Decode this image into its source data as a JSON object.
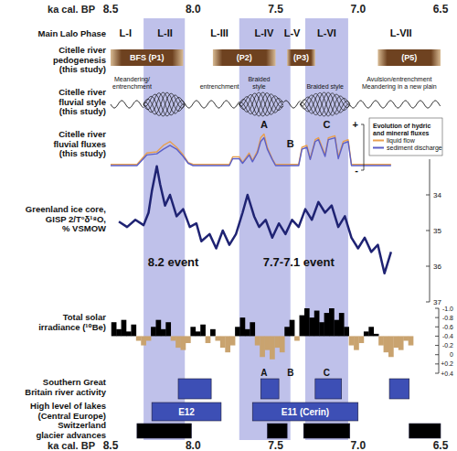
{
  "chart_data": {
    "type": "multi-panel timeline",
    "xlabel": "ka cal. BP",
    "xlim": [
      8.5,
      6.5
    ],
    "xticks": [
      8.5,
      {
        "value": 8,
        "label": "8.0"
      },
      7.5,
      {
        "value": 7,
        "label": "7.0"
      },
      6.5
    ],
    "bands": [
      {
        "start": 8.3,
        "end": 8.05
      },
      {
        "start": 7.72,
        "end": 7.41
      },
      {
        "start": 7.32,
        "end": 7.06
      }
    ],
    "rows": [
      {
        "type": "phases",
        "label": [
          "Main Lalo Phase"
        ],
        "items": [
          {
            "name": "L-I",
            "x": 8.41
          },
          {
            "name": "L-II",
            "x": 8.17
          },
          {
            "name": "L-III",
            "x": 7.84
          },
          {
            "name": "L-IV",
            "x": 7.57
          },
          {
            "name": "L-V",
            "x": 7.4
          },
          {
            "name": "L-VI",
            "x": 7.19
          },
          {
            "name": "L-VII",
            "x": 6.74
          }
        ]
      },
      {
        "type": "intervals",
        "label": [
          "Citelle river",
          "pedogenesis",
          "(this study)"
        ],
        "color": "#6e4220",
        "intervals": [
          {
            "name": "BFS (P1)",
            "start": 8.5,
            "end": 8.06
          },
          {
            "name": "(P2)",
            "start": 7.88,
            "end": 7.5
          },
          {
            "name": "(P3)",
            "start": 7.43,
            "end": 7.26
          },
          {
            "name": "(P5)",
            "start": 6.88,
            "end": 6.5
          }
        ]
      },
      {
        "type": "fluvial_style",
        "label": [
          "Citelle river",
          "fluvial style",
          "(this study)"
        ],
        "segments": [
          {
            "style": "meandering",
            "start": 8.5,
            "end": 8.3
          },
          {
            "style": "braided",
            "start": 8.3,
            "end": 8.05
          },
          {
            "style": "meandering",
            "start": 8.05,
            "end": 7.72
          },
          {
            "style": "braided",
            "start": 7.72,
            "end": 7.45
          },
          {
            "style": "meandering",
            "start": 7.45,
            "end": 7.35
          },
          {
            "style": "braided",
            "start": 7.35,
            "end": 7.05
          },
          {
            "style": "meandering",
            "start": 7.05,
            "end": 6.5
          }
        ],
        "annotations": [
          {
            "lines": [
              "Meandering/",
              "entrenchment"
            ],
            "x": 8.37
          },
          {
            "lines": [
              "entrenchment"
            ],
            "x": 7.84
          },
          {
            "lines": [
              "Braided",
              "style"
            ],
            "x": 7.6
          },
          {
            "lines": [
              "Braided style"
            ],
            "x": 7.2
          },
          {
            "lines": [
              "Avulsion/entrenchment",
              "Meandering in a new plain"
            ],
            "x": 6.75
          }
        ]
      },
      {
        "type": "line",
        "label": [
          "Citelle river",
          "fluvial fluxes",
          "(this study)"
        ],
        "x": [
          8.5,
          8.34,
          8.31,
          8.28,
          8.22,
          8.18,
          8.14,
          8.1,
          8.06,
          8.03,
          8.0,
          7.78,
          7.76,
          7.72,
          7.7,
          7.66,
          7.64,
          7.61,
          7.59,
          7.57,
          7.55,
          7.52,
          7.5,
          7.36,
          7.34,
          7.31,
          7.29,
          7.26,
          7.24,
          7.2,
          7.18,
          7.14,
          7.12,
          7.09,
          7.06,
          7.04,
          6.8
        ],
        "series": [
          {
            "name": "liquid flow",
            "color": "#e8a050",
            "values": [
              1.5,
              1.5,
              3,
              4.5,
              4.8,
              6.5,
              7.5,
              6,
              4,
              2,
              1.5,
              1.5,
              3.5,
              3.5,
              2,
              4.5,
              2.5,
              5,
              8.5,
              9.5,
              6,
              3,
              1.5,
              1.5,
              6,
              6.5,
              3,
              8,
              8.5,
              4,
              8.5,
              9,
              3.5,
              7.5,
              8,
              1.5,
              1.5
            ]
          },
          {
            "name": "sediment discharge",
            "color": "#5b5fc7",
            "values": [
              1.2,
              1.2,
              2.6,
              4,
              4.3,
              5.5,
              6.5,
              5.5,
              3.6,
              1.8,
              1.2,
              1.2,
              3,
              3,
              1.8,
              4,
              2.2,
              4.5,
              7.5,
              8.5,
              5.5,
              2.8,
              1.2,
              1.2,
              5.5,
              6,
              2.8,
              7.5,
              8,
              3.6,
              8,
              8.5,
              3,
              7,
              7.5,
              1.2,
              1.2
            ]
          }
        ],
        "ylim": [
          0,
          12
        ],
        "yticks": [
          {
            "value": 12,
            "label": "+"
          },
          {
            "value": 0,
            "label": "-"
          }
        ],
        "legend": "right",
        "legend_title": "Evolution of hydric and mineral fluxes",
        "annotations": [
          {
            "text": "A",
            "x": 7.57,
            "y": 11
          },
          {
            "text": "B",
            "x": 7.41,
            "y": 6
          },
          {
            "text": "C",
            "x": 7.19,
            "y": 11
          }
        ]
      },
      {
        "type": "line",
        "label": [
          "Greenland ice core,",
          "GISP 2/T°δ¹⁸O,",
          "% VSMOW"
        ],
        "x": [
          8.45,
          8.4,
          8.35,
          8.3,
          8.27,
          8.25,
          8.22,
          8.2,
          8.17,
          8.14,
          8.1,
          8.06,
          8.02,
          7.98,
          7.95,
          7.9,
          7.86,
          7.82,
          7.78,
          7.74,
          7.7,
          7.67,
          7.63,
          7.6,
          7.56,
          7.52,
          7.48,
          7.44,
          7.4,
          7.36,
          7.32,
          7.28,
          7.24,
          7.2,
          7.16,
          7.12,
          7.08,
          7.04,
          7.0,
          6.96,
          6.92,
          6.88,
          6.84,
          6.8
        ],
        "values": [
          34.75,
          34.9,
          34.7,
          34.85,
          34.5,
          33.9,
          33.2,
          33.7,
          34.3,
          34.0,
          34.6,
          34.4,
          34.9,
          34.8,
          35.3,
          35.1,
          35.5,
          35.0,
          35.4,
          35.1,
          34.5,
          34.0,
          34.6,
          34.9,
          34.7,
          35.2,
          34.8,
          35.1,
          34.7,
          34.9,
          34.4,
          34.7,
          34.2,
          34.5,
          34.3,
          34.9,
          34.6,
          35.2,
          35.5,
          35.2,
          35.6,
          35.4,
          36.2,
          35.6
        ],
        "color": "#1f2373",
        "ylim": [
          37,
          33
        ],
        "yticks": [
          34,
          35,
          36,
          37
        ],
        "annotations": [
          {
            "text": "8.2 event",
            "x": 8.12,
            "y": 36
          },
          {
            "text": "7.7-7.1 event",
            "x": 7.36,
            "y": 36
          }
        ]
      },
      {
        "type": "bar",
        "label": [
          "Total solar",
          "irradiance (¹⁰Be)"
        ],
        "x": [
          8.48,
          8.45,
          8.42,
          8.39,
          8.36,
          8.33,
          8.3,
          8.27,
          8.24,
          8.21,
          8.18,
          8.15,
          8.12,
          8.09,
          8.06,
          8.03,
          8.0,
          7.97,
          7.94,
          7.91,
          7.88,
          7.85,
          7.82,
          7.79,
          7.76,
          7.73,
          7.7,
          7.67,
          7.64,
          7.61,
          7.58,
          7.55,
          7.52,
          7.49,
          7.46,
          7.43,
          7.4,
          7.37,
          7.34,
          7.31,
          7.28,
          7.25,
          7.22,
          7.19,
          7.16,
          7.13,
          7.1,
          7.07,
          7.04,
          7.01,
          6.98,
          6.95,
          6.92,
          6.89,
          6.86,
          6.83,
          6.8,
          6.77,
          6.74,
          6.71,
          6.68
        ],
        "values": [
          -0.7,
          -0.55,
          -0.75,
          -0.5,
          -0.65,
          -0.3,
          -0.2,
          -0.3,
          -0.6,
          -0.75,
          -0.55,
          -0.7,
          -0.3,
          -0.15,
          -0.1,
          -0.25,
          -0.6,
          -0.5,
          -0.65,
          -0.25,
          -0.55,
          -0.3,
          -0.15,
          -0.05,
          -0.2,
          -0.6,
          -0.8,
          -0.55,
          -0.7,
          -0.2,
          0.05,
          -0.1,
          0.1,
          -0.15,
          -0.05,
          -0.6,
          -0.75,
          -0.3,
          -0.85,
          -1.0,
          -0.8,
          -0.95,
          -0.7,
          -0.9,
          -1.0,
          -0.75,
          -0.9,
          -0.6,
          -0.2,
          -0.1,
          -0.25,
          -0.5,
          -0.6,
          -0.45,
          -0.2,
          -0.05,
          0.05,
          -0.15,
          -0.1,
          -0.3,
          -0.2
        ],
        "baseline": -0.4,
        "colors": [
          "#000000",
          "#000000",
          "#000000",
          "#000000",
          "#000000",
          "#c9a36f",
          "#c9a36f",
          "#c9a36f",
          "#000000",
          "#000000",
          "#000000",
          "#000000",
          "#c9a36f",
          "#c9a36f",
          "#c9a36f",
          "#c9a36f",
          "#000000",
          "#000000",
          "#000000",
          "#c9a36f",
          "#000000",
          "#c9a36f",
          "#c9a36f",
          "#c9a36f",
          "#c9a36f",
          "#000000",
          "#000000",
          "#000000",
          "#000000",
          "#c9a36f",
          "#c9a36f",
          "#c9a36f",
          "#c9a36f",
          "#c9a36f",
          "#c9a36f",
          "#000000",
          "#000000",
          "#c9a36f",
          "#000000",
          "#000000",
          "#000000",
          "#000000",
          "#000000",
          "#000000",
          "#000000",
          "#000000",
          "#000000",
          "#000000",
          "#c9a36f",
          "#c9a36f",
          "#c9a36f",
          "#000000",
          "#000000",
          "#000000",
          "#c9a36f",
          "#c9a36f",
          "#c9a36f",
          "#c9a36f",
          "#c9a36f",
          "#c9a36f",
          "#c9a36f"
        ],
        "ylim": [
          0.4,
          -1.0
        ],
        "yticks": [
          {
            "value": -1,
            "label": "-1.0"
          },
          -0.8,
          -0.6,
          -0.4,
          -0.2,
          0,
          {
            "value": 0.2,
            "label": "+0.2"
          },
          {
            "value": 0.4,
            "label": "+0.4"
          }
        ],
        "annotations": [
          {
            "text": "A",
            "x": 7.57
          },
          {
            "text": "B",
            "x": 7.41
          },
          {
            "text": "C",
            "x": 7.19
          }
        ]
      },
      {
        "type": "intervals",
        "label": [
          "Southern Great",
          "Britain river activity"
        ],
        "color": "#3d4fb5",
        "intervals": [
          {
            "start": 8.09,
            "end": 7.89
          },
          {
            "start": 7.59,
            "end": 7.48
          },
          {
            "start": 7.26,
            "end": 7.1
          },
          {
            "start": 6.81,
            "end": 6.69
          }
        ]
      },
      {
        "type": "intervals",
        "label": [
          "High level of lakes",
          "(Central Europe)"
        ],
        "color": "#3d4fb5",
        "intervals": [
          {
            "name": "E12",
            "start": 8.25,
            "end": 7.83
          },
          {
            "name": "E11 (Cerin)",
            "start": 7.64,
            "end": 7.0
          }
        ]
      },
      {
        "type": "intervals",
        "label": [
          "Switzerland",
          "glacier advances"
        ],
        "color": "#000000",
        "intervals": [
          {
            "start": 8.34,
            "end": 8.01
          },
          {
            "start": 7.55,
            "end": 7.43
          },
          {
            "start": 7.33,
            "end": 7.05
          },
          {
            "start": 6.69,
            "end": 6.5
          }
        ]
      }
    ]
  }
}
